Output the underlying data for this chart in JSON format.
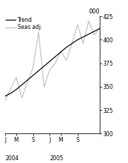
{
  "ylabel": "000",
  "ylim": [
    300,
    425
  ],
  "yticks": [
    300,
    325,
    350,
    375,
    400,
    425
  ],
  "trend_color": "#000000",
  "seas_color": "#bbbbbb",
  "legend_trend": "Trend",
  "legend_seas": "Seas adj.",
  "background_color": "#ffffff",
  "trend_x": [
    0,
    1,
    2,
    3,
    4,
    5,
    6,
    7,
    8,
    9,
    10,
    11,
    12,
    13,
    14,
    15,
    16,
    17
  ],
  "trend_y": [
    340,
    343,
    347,
    352,
    357,
    362,
    367,
    372,
    377,
    382,
    387,
    392,
    396,
    400,
    403,
    406,
    409,
    412
  ],
  "seas_x": [
    0,
    1,
    2,
    3,
    4,
    5,
    6,
    7,
    8,
    9,
    10,
    11,
    12,
    13,
    14,
    15,
    16,
    17
  ],
  "seas_y": [
    335,
    348,
    360,
    338,
    355,
    370,
    408,
    350,
    368,
    375,
    388,
    378,
    396,
    416,
    396,
    420,
    405,
    413
  ],
  "xtick_positions": [
    0,
    2,
    5,
    8,
    10,
    13,
    17
  ],
  "xtick_labels": [
    "J",
    "M",
    "S",
    "J",
    "M",
    "S",
    ""
  ],
  "xlim": [
    0,
    17
  ]
}
